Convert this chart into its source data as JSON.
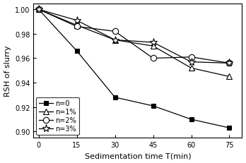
{
  "x": [
    0,
    15,
    30,
    45,
    60,
    75
  ],
  "series_order": [
    "n=0",
    "n=1%",
    "n=2%",
    "n=3%"
  ],
  "series": {
    "n=0": [
      1.0,
      0.966,
      0.928,
      0.921,
      0.91,
      0.903
    ],
    "n=1%": [
      1.0,
      0.987,
      0.975,
      0.97,
      0.952,
      0.945
    ],
    "n=2%": [
      1.0,
      0.986,
      0.982,
      0.96,
      0.961,
      0.956
    ],
    "n=3%": [
      1.0,
      0.991,
      0.975,
      0.973,
      0.957,
      0.956
    ]
  },
  "markers": {
    "n=0": "s",
    "n=1%": "^",
    "n=2%": "o",
    "n=3%": "*"
  },
  "markerfacecolors": {
    "n=0": "black",
    "n=1%": "white",
    "n=2%": "white",
    "n=3%": "white"
  },
  "xlabel": "Sedimentation time T(min)",
  "ylabel": "RSH of slurry",
  "xlim": [
    -2,
    80
  ],
  "ylim": [
    0.895,
    1.005
  ],
  "yticks": [
    0.9,
    0.92,
    0.94,
    0.96,
    0.98,
    1.0
  ],
  "xticks": [
    0,
    15,
    30,
    45,
    60,
    75
  ],
  "color": "#000000",
  "legend_loc": "lower left",
  "markersize_s": 5,
  "markersize_tri": 6,
  "markersize_o": 6,
  "markersize_star": 8,
  "linewidth": 0.9,
  "tick_fontsize": 7,
  "label_fontsize": 8,
  "legend_fontsize": 7
}
